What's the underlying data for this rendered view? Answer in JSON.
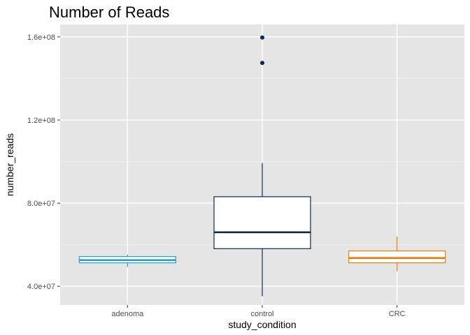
{
  "chart_data": {
    "type": "boxplot",
    "title": "Number of Reads",
    "xlabel": "study_condition",
    "ylabel": "number_reads",
    "categories": [
      "adenoma",
      "control",
      "CRC"
    ],
    "ylim": [
      31000000,
      166000000
    ],
    "yticks": [
      {
        "value": 40000000,
        "label": "4.0e+07"
      },
      {
        "value": 80000000,
        "label": "8.0e+07"
      },
      {
        "value": 120000000,
        "label": "1.2e+08"
      },
      {
        "value": 160000000,
        "label": "1.6e+08"
      }
    ],
    "boxes": [
      {
        "category": "adenoma",
        "whisker_low": 49300000,
        "q1": 51300000,
        "median": 52600000,
        "q3": 54300000,
        "whisker_high": 55200000,
        "outliers": [],
        "color": "#2A9FC7"
      },
      {
        "category": "control",
        "whisker_low": 35200000,
        "q1": 58100000,
        "median": 66000000,
        "q3": 83100000,
        "whisker_high": 99300000,
        "outliers": [
          147500000,
          159700000
        ],
        "color": "#0E2A47"
      },
      {
        "category": "CRC",
        "whisker_low": 47300000,
        "q1": 51300000,
        "median": 53600000,
        "q3": 57000000,
        "whisker_high": 63900000,
        "outliers": [],
        "color": "#F2780C"
      }
    ],
    "grid": true,
    "legend": "none",
    "panel_background": "#E5E5E5"
  }
}
